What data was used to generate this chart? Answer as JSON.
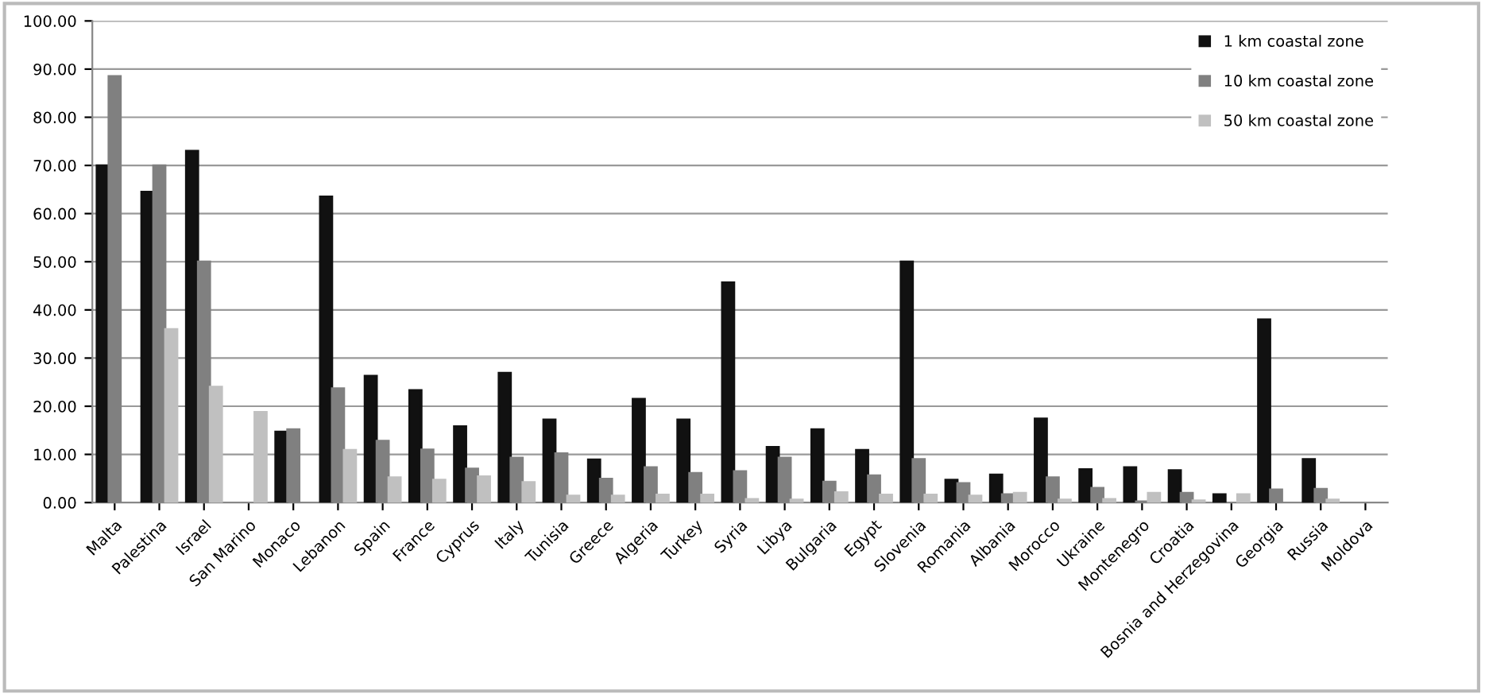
{
  "chart_data": {
    "type": "bar",
    "categories": [
      "Malta",
      "Palestina",
      "Israel",
      "San Marino",
      "Monaco",
      "Lebanon",
      "Spain",
      "France",
      "Cyprus",
      "Italy",
      "Tunisia",
      "Greece",
      "Algeria",
      "Turkey",
      "Syria",
      "Libya",
      "Bulgaria",
      "Egypt",
      "Slovenia",
      "Romania",
      "Albania",
      "Morocco",
      "Ukraine",
      "Montenegro",
      "Croatia",
      "Bosnia and Herzegovina",
      "Georgia",
      "Russia",
      "Moldova"
    ],
    "series": [
      {
        "name": "1 km coastal zone",
        "color": "#111111",
        "values": [
          70,
          64.5,
          73,
          null,
          14.7,
          63.5,
          26.3,
          23.3,
          15.8,
          26.9,
          17.2,
          8.9,
          21.5,
          17.2,
          45.7,
          11.5,
          15.2,
          10.9,
          50,
          4.7,
          5.8,
          17.4,
          6.9,
          7.3,
          6.7,
          1.7,
          38,
          9,
          null
        ]
      },
      {
        "name": "10 km coastal zone",
        "color": "#808080",
        "values": [
          88.5,
          70,
          50,
          null,
          15.2,
          23.7,
          12.8,
          11,
          7,
          9.3,
          10.2,
          4.9,
          7.3,
          6.1,
          6.5,
          9.3,
          4.3,
          5.6,
          9,
          4,
          1.7,
          5.2,
          3,
          0.2,
          2,
          null,
          2.7,
          2.8,
          null
        ]
      },
      {
        "name": "50 km coastal zone",
        "color": "#c0c0c0",
        "values": [
          null,
          36,
          24,
          18.8,
          null,
          10.9,
          5.2,
          4.7,
          5.4,
          4.2,
          1.4,
          1.4,
          1.6,
          1.6,
          0.7,
          0.6,
          2.1,
          1.6,
          1.6,
          1.4,
          2,
          0.6,
          0.7,
          2,
          0.4,
          1.7,
          null,
          0.6,
          null
        ]
      }
    ],
    "ylim": [
      0,
      100
    ],
    "yticks": [
      {
        "value": 0,
        "label": "0.00"
      },
      {
        "value": 10,
        "label": "10.00"
      },
      {
        "value": 20,
        "label": "20.00"
      },
      {
        "value": 30,
        "label": "30.00"
      },
      {
        "value": 40,
        "label": "40.00"
      },
      {
        "value": 50,
        "label": "50.00"
      },
      {
        "value": 60,
        "label": "60.00"
      },
      {
        "value": 70,
        "label": "70.00"
      },
      {
        "value": 80,
        "label": "80.00"
      },
      {
        "value": 90,
        "label": "90.00"
      },
      {
        "value": 100,
        "label": "100.00"
      }
    ],
    "grid": "y",
    "legend": "top right"
  }
}
